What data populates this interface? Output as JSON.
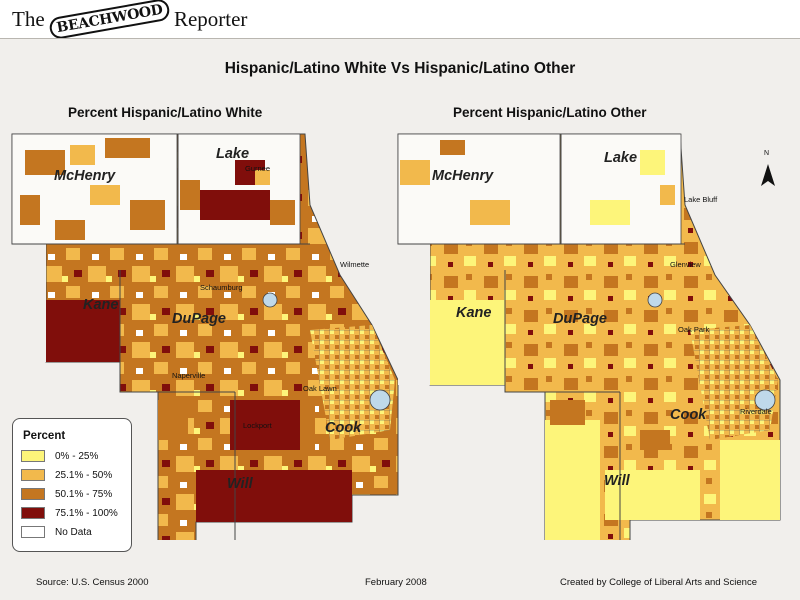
{
  "header": {
    "logo_word_1": "The",
    "logo_word_2": "BEACHWOOD",
    "logo_word_3": "Reporter"
  },
  "title": "Hispanic/Latino White Vs Hispanic/Latino Other",
  "maps": [
    {
      "title": "Percent Hispanic/Latino White",
      "counties": [
        "McHenry",
        "Lake",
        "Kane",
        "DuPage",
        "Cook",
        "Will"
      ],
      "cities": [
        "Gurnee",
        "Wilmette",
        "Schaumburg",
        "Naperville",
        "Lockport",
        "Oak Lawn"
      ]
    },
    {
      "title": "Percent Hispanic/Latino Other",
      "counties": [
        "McHenry",
        "Lake",
        "Kane",
        "DuPage",
        "Cook",
        "Will"
      ],
      "cities": [
        "Lake Bluff",
        "Glenview",
        "Oak Park",
        "Riverdale"
      ]
    }
  ],
  "legend": {
    "title": "Percent",
    "items": [
      {
        "label": "0% - 25%",
        "color": "#fdf57a"
      },
      {
        "label": "25.1% - 50%",
        "color": "#f2b94c"
      },
      {
        "label": "50.1% - 75%",
        "color": "#c47620"
      },
      {
        "label": "75.1% - 100%",
        "color": "#800e0b"
      },
      {
        "label": "No Data",
        "color": "#ffffff"
      }
    ]
  },
  "north_arrow_label": "N",
  "footer": {
    "source": "Source: U.S. Census 2000",
    "date": "February 2008",
    "credit": "Created by College of Liberal Arts and Science"
  },
  "colors": {
    "background": "#f1efec",
    "lake": "#bfd9ea",
    "boundary": "#444444"
  }
}
